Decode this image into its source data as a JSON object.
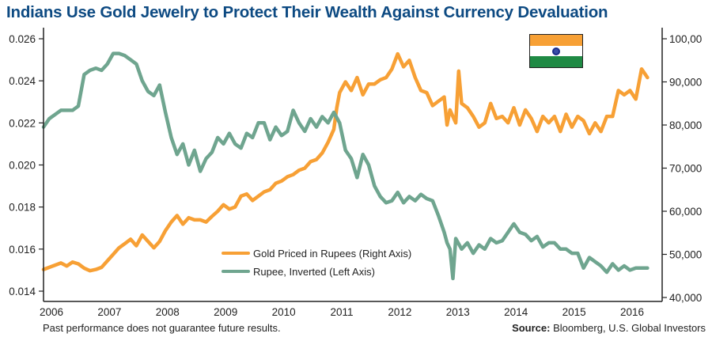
{
  "chart_data": {
    "type": "line",
    "title": "Indians Use Gold Jewelry to Protect Their Wealth Against Currency Devaluation",
    "xlabel": "",
    "x_ticks": [
      "2006",
      "2007",
      "2008",
      "2009",
      "2010",
      "2011",
      "2012",
      "2013",
      "2014",
      "2015",
      "2016"
    ],
    "xlim": [
      2006.0,
      2016.45
    ],
    "left_axis": {
      "label": "",
      "ylim": [
        0.0135,
        0.0265
      ],
      "ticks": [
        "0.014",
        "0.016",
        "0.018",
        "0.020",
        "0.022",
        "0.024",
        "0.026"
      ],
      "tick_values": [
        0.014,
        0.016,
        0.018,
        0.02,
        0.022,
        0.024,
        0.026
      ]
    },
    "right_axis": {
      "label": "",
      "ylim": [
        39000,
        102000
      ],
      "ticks": [
        "40,000",
        "50,000",
        "60,000",
        "70,000",
        "80,000",
        "90,000",
        "100,00"
      ],
      "tick_values": [
        40000,
        50000,
        60000,
        70000,
        80000,
        90000,
        100000
      ]
    },
    "grid": false,
    "legend_position": "bottom-center",
    "series": [
      {
        "name": "Gold Priced in Rupees (Right Axis)",
        "axis": "right",
        "color": "#f7a035",
        "x": [
          2006.0,
          2006.1,
          2006.2,
          2006.3,
          2006.4,
          2006.5,
          2006.6,
          2006.7,
          2006.8,
          2006.9,
          2007.0,
          2007.1,
          2007.2,
          2007.3,
          2007.4,
          2007.5,
          2007.6,
          2007.7,
          2007.8,
          2007.9,
          2008.0,
          2008.1,
          2008.2,
          2008.3,
          2008.4,
          2008.5,
          2008.6,
          2008.7,
          2008.8,
          2008.9,
          2009.0,
          2009.1,
          2009.2,
          2009.3,
          2009.4,
          2009.5,
          2009.6,
          2009.7,
          2009.8,
          2009.9,
          2010.0,
          2010.1,
          2010.2,
          2010.3,
          2010.4,
          2010.5,
          2010.6,
          2010.7,
          2010.8,
          2010.9,
          2011.0,
          2011.05,
          2011.1,
          2011.2,
          2011.3,
          2011.4,
          2011.5,
          2011.6,
          2011.7,
          2011.8,
          2011.9,
          2012.0,
          2012.1,
          2012.2,
          2012.3,
          2012.4,
          2012.5,
          2012.6,
          2012.7,
          2012.8,
          2012.9,
          2012.95,
          2013.0,
          2013.1,
          2013.15,
          2013.2,
          2013.3,
          2013.4,
          2013.5,
          2013.6,
          2013.7,
          2013.8,
          2013.9,
          2014.0,
          2014.1,
          2014.2,
          2014.3,
          2014.4,
          2014.5,
          2014.6,
          2014.7,
          2014.8,
          2014.9,
          2015.0,
          2015.1,
          2015.2,
          2015.3,
          2015.4,
          2015.5,
          2015.6,
          2015.7,
          2015.8,
          2015.9,
          2016.0,
          2016.1,
          2016.2,
          2016.3,
          2016.4
        ],
        "values": [
          46500,
          47000,
          47500,
          48000,
          47300,
          48200,
          47800,
          46800,
          46200,
          46500,
          47000,
          48500,
          50000,
          51500,
          52500,
          53500,
          52000,
          54500,
          53000,
          51500,
          53000,
          55500,
          57500,
          59000,
          57000,
          58500,
          58000,
          58000,
          57500,
          58800,
          60000,
          61500,
          60500,
          61000,
          63500,
          64000,
          62500,
          63500,
          64500,
          65000,
          66500,
          67000,
          68000,
          68500,
          69500,
          70000,
          71500,
          72000,
          73500,
          76000,
          79000,
          84000,
          87500,
          90000,
          88000,
          91000,
          87000,
          89500,
          89500,
          90500,
          91000,
          93000,
          96500,
          93500,
          95000,
          91000,
          88000,
          87500,
          84500,
          85500,
          86500,
          80000,
          83500,
          80500,
          92500,
          85000,
          84000,
          82000,
          79500,
          80500,
          85000,
          81500,
          82000,
          80500,
          84000,
          80000,
          83500,
          81500,
          78500,
          82000,
          80500,
          82000,
          78500,
          82500,
          79500,
          82000,
          81000,
          78000,
          80500,
          78500,
          82000,
          82000,
          88000,
          87000,
          88000,
          86000,
          93000,
          91000
        ],
        "note": "approximate values read from chart"
      },
      {
        "name": "Rupee, Inverted (Left Axis)",
        "axis": "left",
        "color": "#6fa58f",
        "x": [
          2006.0,
          2006.1,
          2006.2,
          2006.3,
          2006.4,
          2006.5,
          2006.6,
          2006.7,
          2006.8,
          2006.9,
          2007.0,
          2007.1,
          2007.2,
          2007.3,
          2007.4,
          2007.5,
          2007.6,
          2007.7,
          2007.8,
          2007.9,
          2008.0,
          2008.1,
          2008.2,
          2008.3,
          2008.4,
          2008.5,
          2008.6,
          2008.7,
          2008.8,
          2008.9,
          2009.0,
          2009.1,
          2009.2,
          2009.3,
          2009.4,
          2009.5,
          2009.6,
          2009.7,
          2009.8,
          2009.9,
          2010.0,
          2010.1,
          2010.2,
          2010.3,
          2010.4,
          2010.5,
          2010.6,
          2010.7,
          2010.8,
          2010.9,
          2011.0,
          2011.1,
          2011.2,
          2011.3,
          2011.4,
          2011.5,
          2011.6,
          2011.7,
          2011.8,
          2011.9,
          2012.0,
          2012.1,
          2012.2,
          2012.3,
          2012.4,
          2012.5,
          2012.6,
          2012.7,
          2012.8,
          2012.9,
          2012.95,
          2013.0,
          2013.05,
          2013.1,
          2013.2,
          2013.3,
          2013.4,
          2013.5,
          2013.6,
          2013.7,
          2013.8,
          2013.9,
          2014.0,
          2014.1,
          2014.2,
          2014.3,
          2014.4,
          2014.5,
          2014.6,
          2014.7,
          2014.8,
          2014.9,
          2015.0,
          2015.1,
          2015.2,
          2015.3,
          2015.4,
          2015.5,
          2015.6,
          2015.7,
          2015.8,
          2015.9,
          2016.0,
          2016.1,
          2016.2,
          2016.3,
          2016.4
        ],
        "values": [
          0.0218,
          0.0222,
          0.0224,
          0.0226,
          0.0226,
          0.0226,
          0.0228,
          0.0243,
          0.0245,
          0.0246,
          0.0245,
          0.0248,
          0.0253,
          0.0253,
          0.0252,
          0.025,
          0.0248,
          0.024,
          0.0235,
          0.0233,
          0.0238,
          0.0225,
          0.0213,
          0.0205,
          0.021,
          0.02,
          0.0207,
          0.0197,
          0.0203,
          0.0206,
          0.0213,
          0.021,
          0.0215,
          0.021,
          0.0208,
          0.0215,
          0.0213,
          0.022,
          0.022,
          0.0212,
          0.0218,
          0.0214,
          0.0216,
          0.0226,
          0.022,
          0.0216,
          0.0222,
          0.0218,
          0.0223,
          0.022,
          0.0225,
          0.022,
          0.0207,
          0.0203,
          0.0194,
          0.0205,
          0.02,
          0.019,
          0.0185,
          0.0182,
          0.0183,
          0.0187,
          0.0182,
          0.0185,
          0.0183,
          0.0186,
          0.0184,
          0.0183,
          0.0176,
          0.0168,
          0.0163,
          0.016,
          0.0146,
          0.0165,
          0.016,
          0.0163,
          0.0158,
          0.0162,
          0.016,
          0.0165,
          0.0163,
          0.0164,
          0.0168,
          0.0172,
          0.0168,
          0.0167,
          0.0164,
          0.0166,
          0.0161,
          0.0163,
          0.0163,
          0.016,
          0.016,
          0.0158,
          0.0158,
          0.0151,
          0.0156,
          0.0154,
          0.0152,
          0.0149,
          0.0153,
          0.015,
          0.0152,
          0.015,
          0.0151,
          0.0151,
          0.0151
        ],
        "note": "approximate values read from chart"
      }
    ]
  },
  "footer": {
    "disclaimer": "Past performance does not guarantee future results.",
    "source_label": "Source:",
    "source_text": " Bloomberg, U.S. Global Investors"
  },
  "flag": {
    "name": "India",
    "colors": {
      "saffron": "#f7a035",
      "white": "#ffffff",
      "green": "#1f8a44",
      "chakra": "#1b2c8a"
    }
  }
}
